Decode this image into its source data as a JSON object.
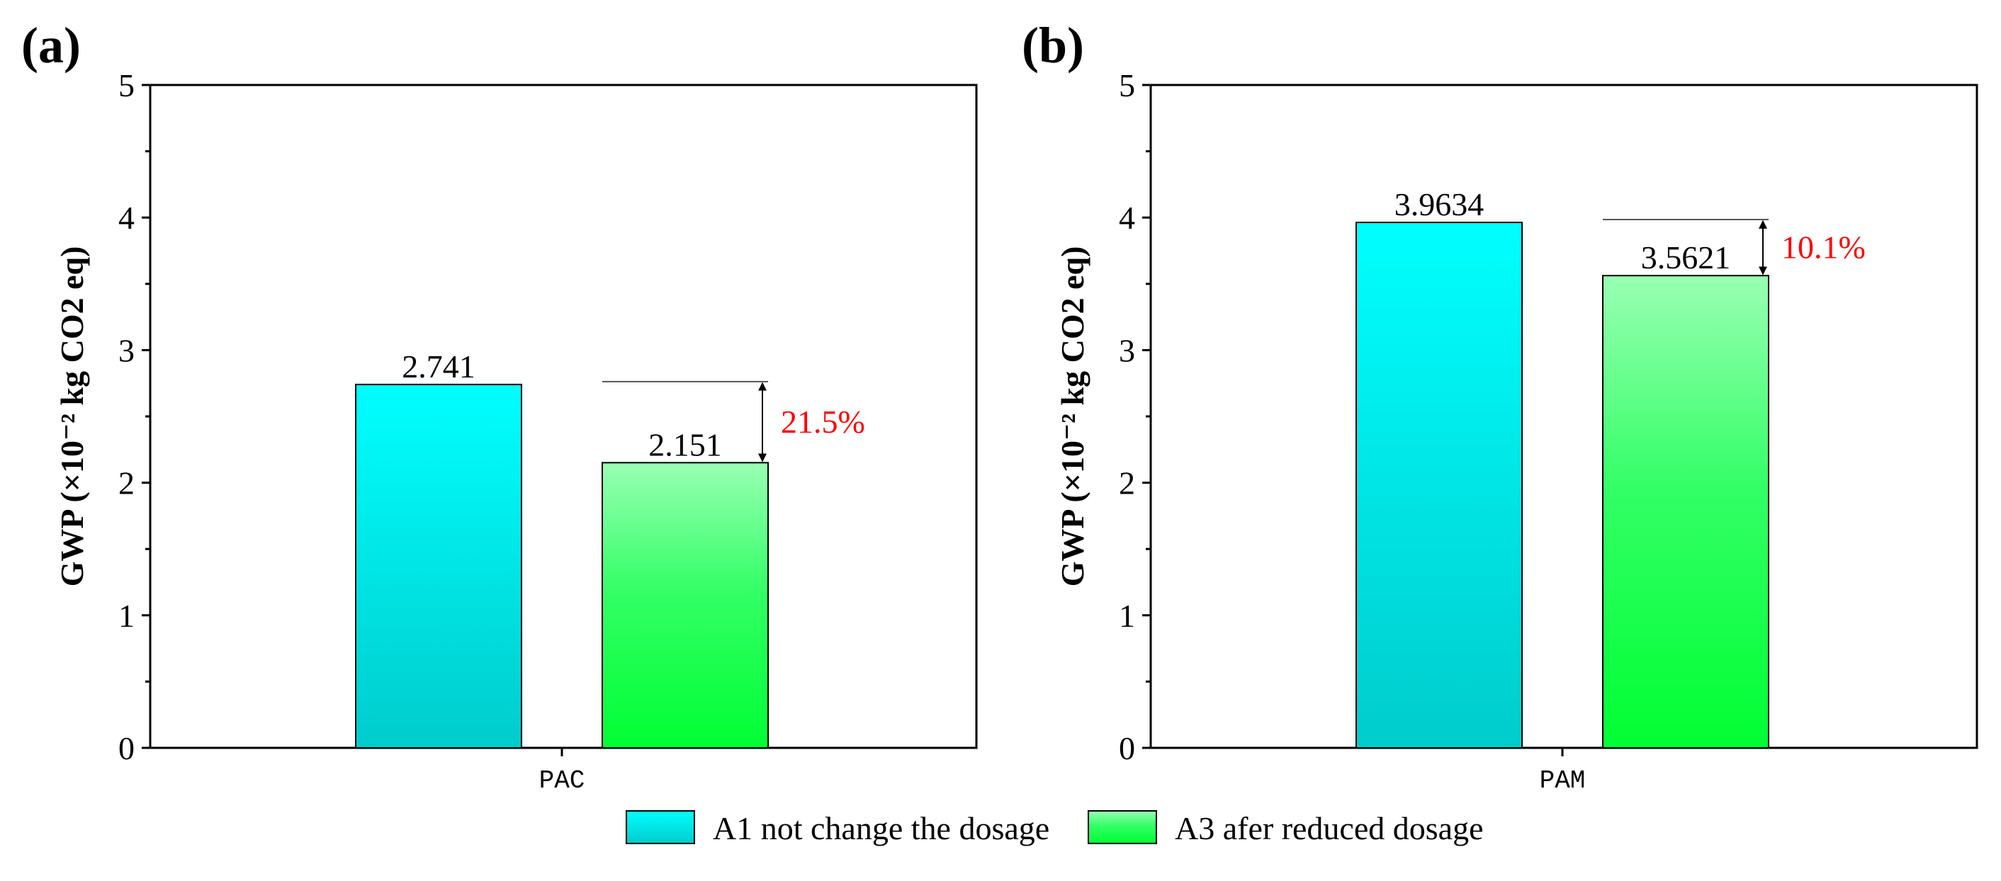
{
  "chart_data": [
    {
      "type": "bar",
      "panel_label": "(a)",
      "category": "PAC",
      "ylabel": "GWP (×10⁻² kg CO2 eq)",
      "ylim": [
        0,
        5
      ],
      "yticks": [
        "0",
        "1",
        "2",
        "3",
        "4",
        "5"
      ],
      "series": [
        {
          "name": "A1 not change the dosage",
          "value": 2.741,
          "label": "2.741"
        },
        {
          "name": "A3 afer reduced dosage",
          "value": 2.151,
          "label": "2.151"
        }
      ],
      "annotation": {
        "text": "21.5%",
        "from": 2.741,
        "to": 2.151,
        "color": "#ff0000"
      }
    },
    {
      "type": "bar",
      "panel_label": "(b)",
      "category": "PAM",
      "ylabel": "GWP (×10⁻² kg CO2 eq)",
      "ylim": [
        0,
        5
      ],
      "yticks": [
        "0",
        "1",
        "2",
        "3",
        "4",
        "5"
      ],
      "series": [
        {
          "name": "A1 not change the dosage",
          "value": 3.9634,
          "label": "3.9634"
        },
        {
          "name": "A3 afer reduced dosage",
          "value": 3.5621,
          "label": "3.5621"
        }
      ],
      "annotation": {
        "text": "10.1%",
        "from": 3.9634,
        "to": 3.5621,
        "color": "#ff0000"
      }
    }
  ],
  "legend": [
    {
      "label": "A1 not change the dosage",
      "color_top": "#00ffff",
      "color_bottom": "#00cccc"
    },
    {
      "label": "A3 afer reduced dosage",
      "color_top": "#99ffb3",
      "color_bottom": "#00ff33"
    }
  ],
  "colors": {
    "a1_top": "#00ffff",
    "a1_bottom": "#00cccc",
    "a3_top": "#99ffb3",
    "a3_bottom": "#00ff33",
    "annotation": "#ff0000",
    "axis": "#000000"
  }
}
